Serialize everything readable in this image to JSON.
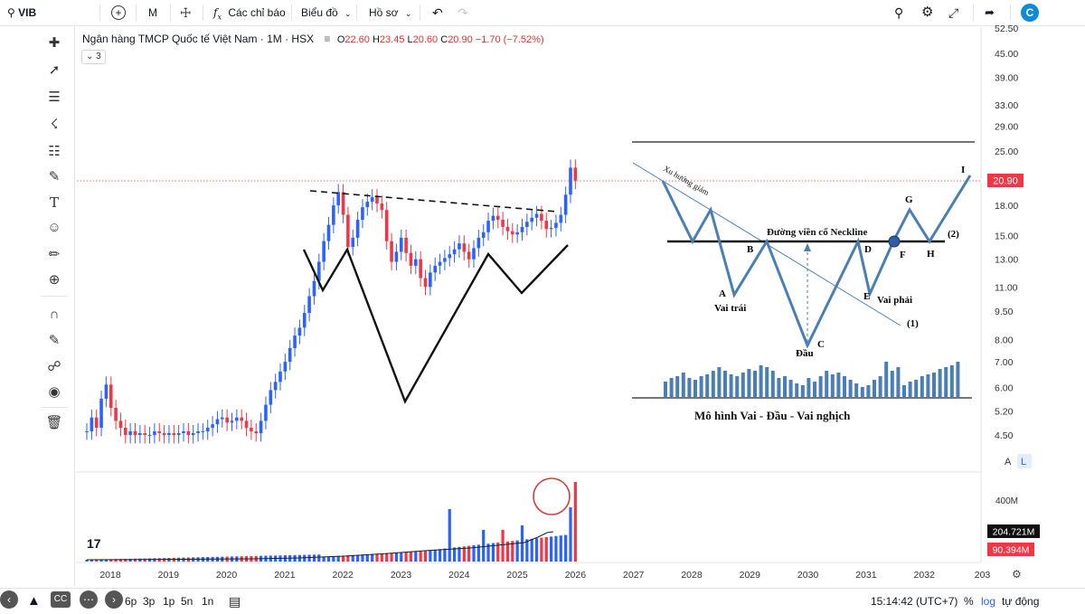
{
  "toolbar": {
    "symbol": "VIB",
    "interval": "M",
    "indicators_label": "Các chỉ báo",
    "chart_label": "Biểu đồ",
    "profile_label": "Hồ sơ",
    "logo_letter": "C"
  },
  "legend": {
    "title": "Ngân hàng TMCP Quốc tế Việt Nam · 1M · HSX",
    "open_label": "O",
    "open": "22.60",
    "high_label": "H",
    "high": "23.45",
    "low_label": "L",
    "low": "20.60",
    "close_label": "C",
    "close": "20.90",
    "change": "−1.70 (−7.52%)",
    "collapsed_count": "3"
  },
  "price_axis": {
    "labels": [
      "52.50",
      "45.00",
      "39.00",
      "33.00",
      "29.00",
      "25.00",
      "18.00",
      "15.00",
      "13.00",
      "11.00",
      "9.50",
      "8.00",
      "7.00",
      "6.00",
      "5.20",
      "4.50"
    ],
    "current_price": "20.90",
    "auto_label": "A",
    "log_label": "L"
  },
  "volume_axis": {
    "tick": "400M",
    "volume_badge": "204.721M",
    "volume_badge2": "90.394M"
  },
  "time_axis": {
    "labels": [
      "2018",
      "2019",
      "2020",
      "2021",
      "2022",
      "2023",
      "2024",
      "2025",
      "2026",
      "2027",
      "2028",
      "2029",
      "2030",
      "2031",
      "2032",
      "203"
    ]
  },
  "bottom": {
    "ranges": [
      "6p",
      "3p",
      "1p",
      "5n",
      "1n"
    ],
    "time": "15:14:42 (UTC+7)",
    "percent": "%",
    "log": "log",
    "auto": "tự động"
  },
  "diagram": {
    "trend_label": "Xu hướng giảm",
    "neckline_label": "Đường viền cổ Neckline",
    "point_a": "A",
    "point_b": "B",
    "point_c": "C",
    "point_d": "D",
    "point_e": "E",
    "point_f": "F",
    "point_g": "G",
    "point_h": "H",
    "point_i": "I",
    "left_shoulder": "Vai trái",
    "head": "Đầu",
    "right_shoulder": "Vai phải",
    "marker_1": "(1)",
    "marker_2": "(2)",
    "caption": "Mô hình Vai - Đầu - Vai  nghịch"
  },
  "colors": {
    "up": "#2962ff",
    "down": "#f23645",
    "accent": "#2962ff"
  },
  "chart_data": {
    "type": "candlestick",
    "title": "Ngân hàng TMCP Quốc tế Việt Nam · 1M · HSX",
    "y_scale": "log",
    "ylim": [
      4.5,
      52.5
    ],
    "x": [
      "2018",
      "2019",
      "2020",
      "2021",
      "2022",
      "2023",
      "2024",
      "2025",
      "2026"
    ],
    "series": [
      {
        "values_close_approx": [
          4.6,
          4.5,
          4.6,
          4.7,
          13.5,
          12.8,
          14.2,
          15.3,
          19.8
        ],
        "last_candle": {
          "open": 22.6,
          "high": 23.45,
          "low": 20.6,
          "close": 20.9
        }
      }
    ],
    "annotations": {
      "neckline_trend": "dashed resistance line from 2021 high to 2025",
      "inverse_head_shoulders_overlay": true,
      "volume_spike_circled": "2025"
    }
  }
}
